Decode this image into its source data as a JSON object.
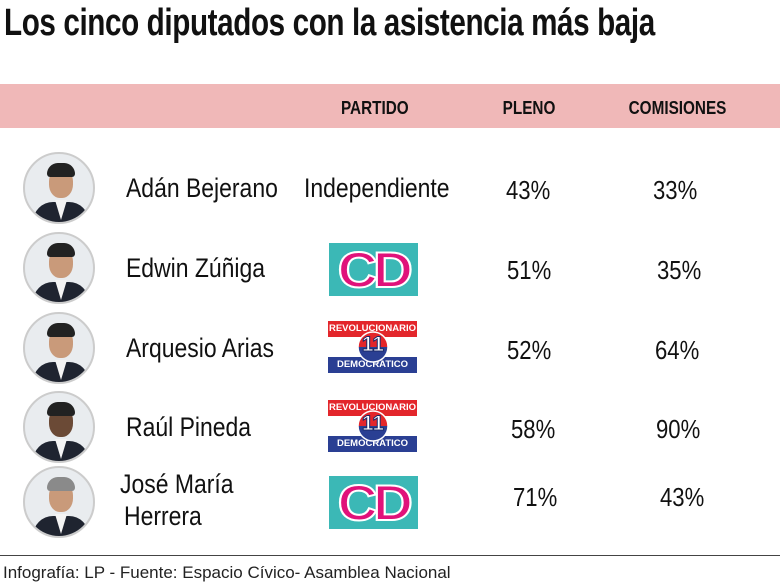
{
  "title": "Los cinco diputados con la asistencia más baja",
  "chart_data": {
    "type": "table",
    "columns": [
      "PARTIDO",
      "PLENO",
      "COMISIONES"
    ],
    "rows": [
      {
        "name": "Adán Bejerano",
        "partido": "Independiente",
        "party_logo": "",
        "pleno": "43%",
        "comisiones": "33%"
      },
      {
        "name": "Edwin Zúñiga",
        "partido": "",
        "party_logo": "CD",
        "pleno": "51%",
        "comisiones": "35%"
      },
      {
        "name": "Arquesio Arias",
        "partido": "",
        "party_logo": "PRD",
        "pleno": "52%",
        "comisiones": "64%"
      },
      {
        "name": "Raúl Pineda",
        "partido": "",
        "party_logo": "PRD",
        "pleno": "58%",
        "comisiones": "90%"
      },
      {
        "name_line1": "José María",
        "name_line2": "Herrera",
        "partido": "",
        "party_logo": "CD",
        "pleno": "71%",
        "comisiones": "43%"
      }
    ]
  },
  "logos": {
    "cd_text": "CD",
    "prd_top": "REVOLUCIONARIO",
    "prd_number": "11",
    "prd_bottom": "DEMOCRATICO"
  },
  "colors": {
    "header_band": "#f0b8b8",
    "cd_bg": "#3bb8b6",
    "cd_letters": "#e0127a",
    "prd_red": "#e3262b",
    "prd_blue": "#2a3f93"
  },
  "footer": "Infografía: LP - Fuente: Espacio Cívico- Asamblea Nacional"
}
